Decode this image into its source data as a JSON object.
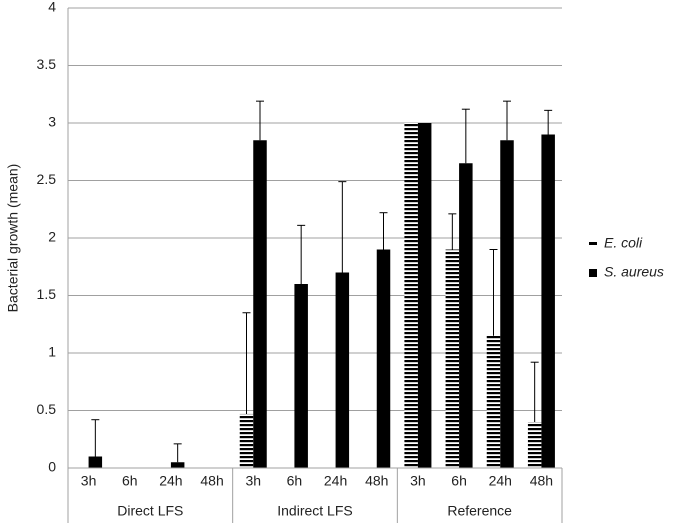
{
  "chart_data": {
    "type": "bar",
    "y_label": "Bacterial growth (mean)",
    "groups": [
      "Direct LFS",
      "Indirect LFS",
      "Reference"
    ],
    "categories": [
      "3h",
      "6h",
      "24h",
      "48h",
      "3h",
      "6h",
      "24h",
      "48h",
      "3h",
      "6h",
      "24h",
      "48h"
    ],
    "series": [
      {
        "name": "E. coli",
        "color": "#000000",
        "pattern": "horizontal-stripes",
        "values": [
          0,
          0,
          0,
          0,
          0.47,
          0,
          0,
          0,
          3.0,
          1.9,
          1.15,
          0.4
        ],
        "errors": [
          null,
          null,
          null,
          null,
          0.88,
          null,
          null,
          null,
          null,
          0.31,
          0.75,
          0.52
        ]
      },
      {
        "name": "S. aureus",
        "color": "#000000",
        "pattern": "solid",
        "values": [
          0.1,
          0,
          0.05,
          0,
          2.85,
          1.6,
          1.7,
          1.9,
          3.0,
          2.65,
          2.85,
          2.9
        ],
        "errors": [
          0.32,
          null,
          0.16,
          null,
          0.34,
          0.51,
          0.79,
          0.32,
          null,
          0.47,
          0.34,
          0.21
        ]
      }
    ],
    "ylim": [
      0,
      4
    ],
    "yticks": [
      0,
      0.5,
      1,
      1.5,
      2,
      2.5,
      3,
      3.5,
      4
    ],
    "grid": true,
    "legend": "right"
  }
}
